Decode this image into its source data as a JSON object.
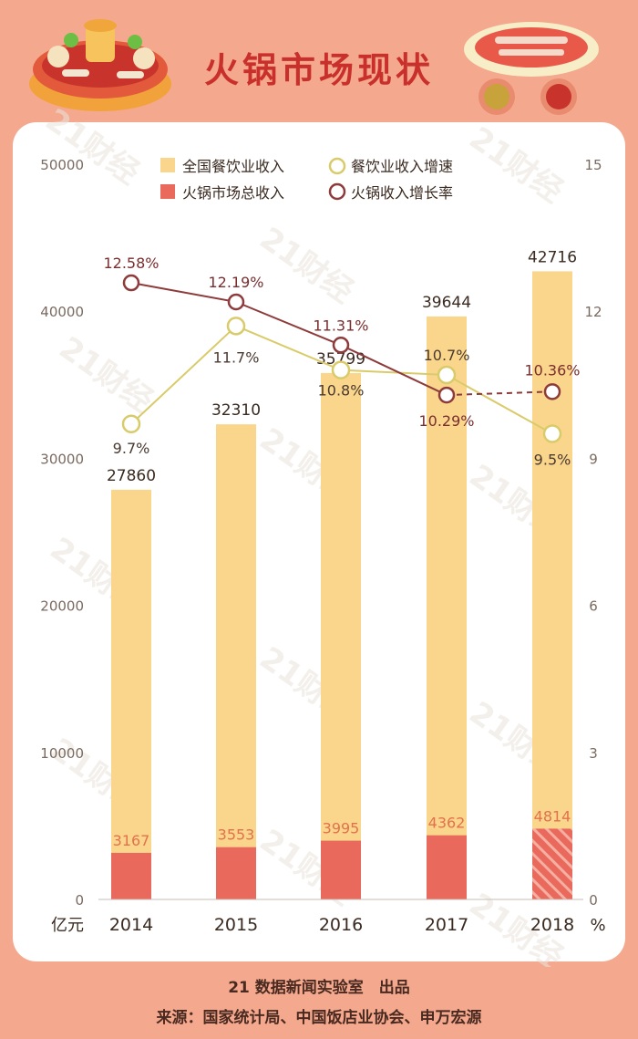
{
  "header": {
    "title": "火锅市场现状"
  },
  "chart_data": {
    "type": "bar",
    "categories": [
      "2014",
      "2015",
      "2016",
      "2017",
      "2018"
    ],
    "series": [
      {
        "name": "全国餐饮业收入",
        "kind": "bar",
        "axis": "left",
        "color": "#FAD68C",
        "values": [
          27860,
          32310,
          35799,
          39644,
          42716
        ]
      },
      {
        "name": "火锅市场总收入",
        "kind": "bar",
        "axis": "left",
        "color": "#E96A5C",
        "values": [
          3167,
          3553,
          3995,
          4362,
          4814
        ]
      },
      {
        "name": "餐饮业收入增速",
        "kind": "line",
        "axis": "right",
        "color": "#D9CB6A",
        "values": [
          9.7,
          11.7,
          10.8,
          10.7,
          9.5
        ],
        "labels": [
          "9.7%",
          "11.7%",
          "10.8%",
          "10.7%",
          "9.5%"
        ]
      },
      {
        "name": "火锅收入增长率",
        "kind": "line",
        "axis": "right",
        "color": "#8E3B3B",
        "values": [
          12.58,
          12.19,
          11.31,
          10.29,
          10.36
        ],
        "labels": [
          "12.58%",
          "12.19%",
          "11.31%",
          "10.29%",
          "10.36%"
        ]
      }
    ],
    "y_left": {
      "label": "亿元",
      "range": [
        0,
        50000
      ],
      "ticks": [
        0,
        10000,
        20000,
        30000,
        40000,
        50000
      ]
    },
    "y_right": {
      "label": "%",
      "range": [
        0,
        15
      ],
      "ticks": [
        0,
        3,
        6,
        9,
        12,
        15
      ]
    },
    "legend_position": "top",
    "estimate_note_year": "2018"
  },
  "footer": {
    "credit": "21 数据新闻实验室　出品",
    "source": "来源：国家统计局、中国饭店业协会、申万宏源"
  },
  "watermark": "21财经"
}
